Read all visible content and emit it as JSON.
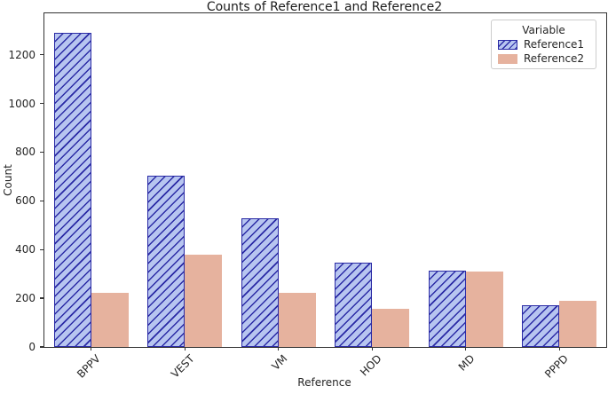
{
  "chart_data": {
    "type": "bar",
    "title": "Counts of Reference1 and Reference2",
    "xlabel": "Reference",
    "ylabel": "Count",
    "categories": [
      "BPPV",
      "VEST",
      "VM",
      "HOD",
      "MD",
      "PPPD"
    ],
    "series": [
      {
        "name": "Reference1",
        "values": [
          1290,
          705,
          530,
          345,
          313,
          170
        ],
        "fill": "#b7c5f0",
        "edge": "#2a2aa5",
        "hatch": "/"
      },
      {
        "name": "Reference2",
        "values": [
          222,
          380,
          222,
          155,
          310,
          190
        ],
        "fill": "#e6b29e",
        "edge": "#e6b29e",
        "hatch": null
      }
    ],
    "yticks": [
      0,
      200,
      400,
      600,
      800,
      1000,
      1200
    ],
    "ylim": [
      0,
      1370
    ],
    "grid": false,
    "legend_title": "Variable",
    "legend_position": "upper right",
    "x_tick_rotation": 45,
    "colors": {
      "spine": "#333333",
      "text": "#262626",
      "legend_border": "#cccccc",
      "background": "#ffffff"
    }
  }
}
